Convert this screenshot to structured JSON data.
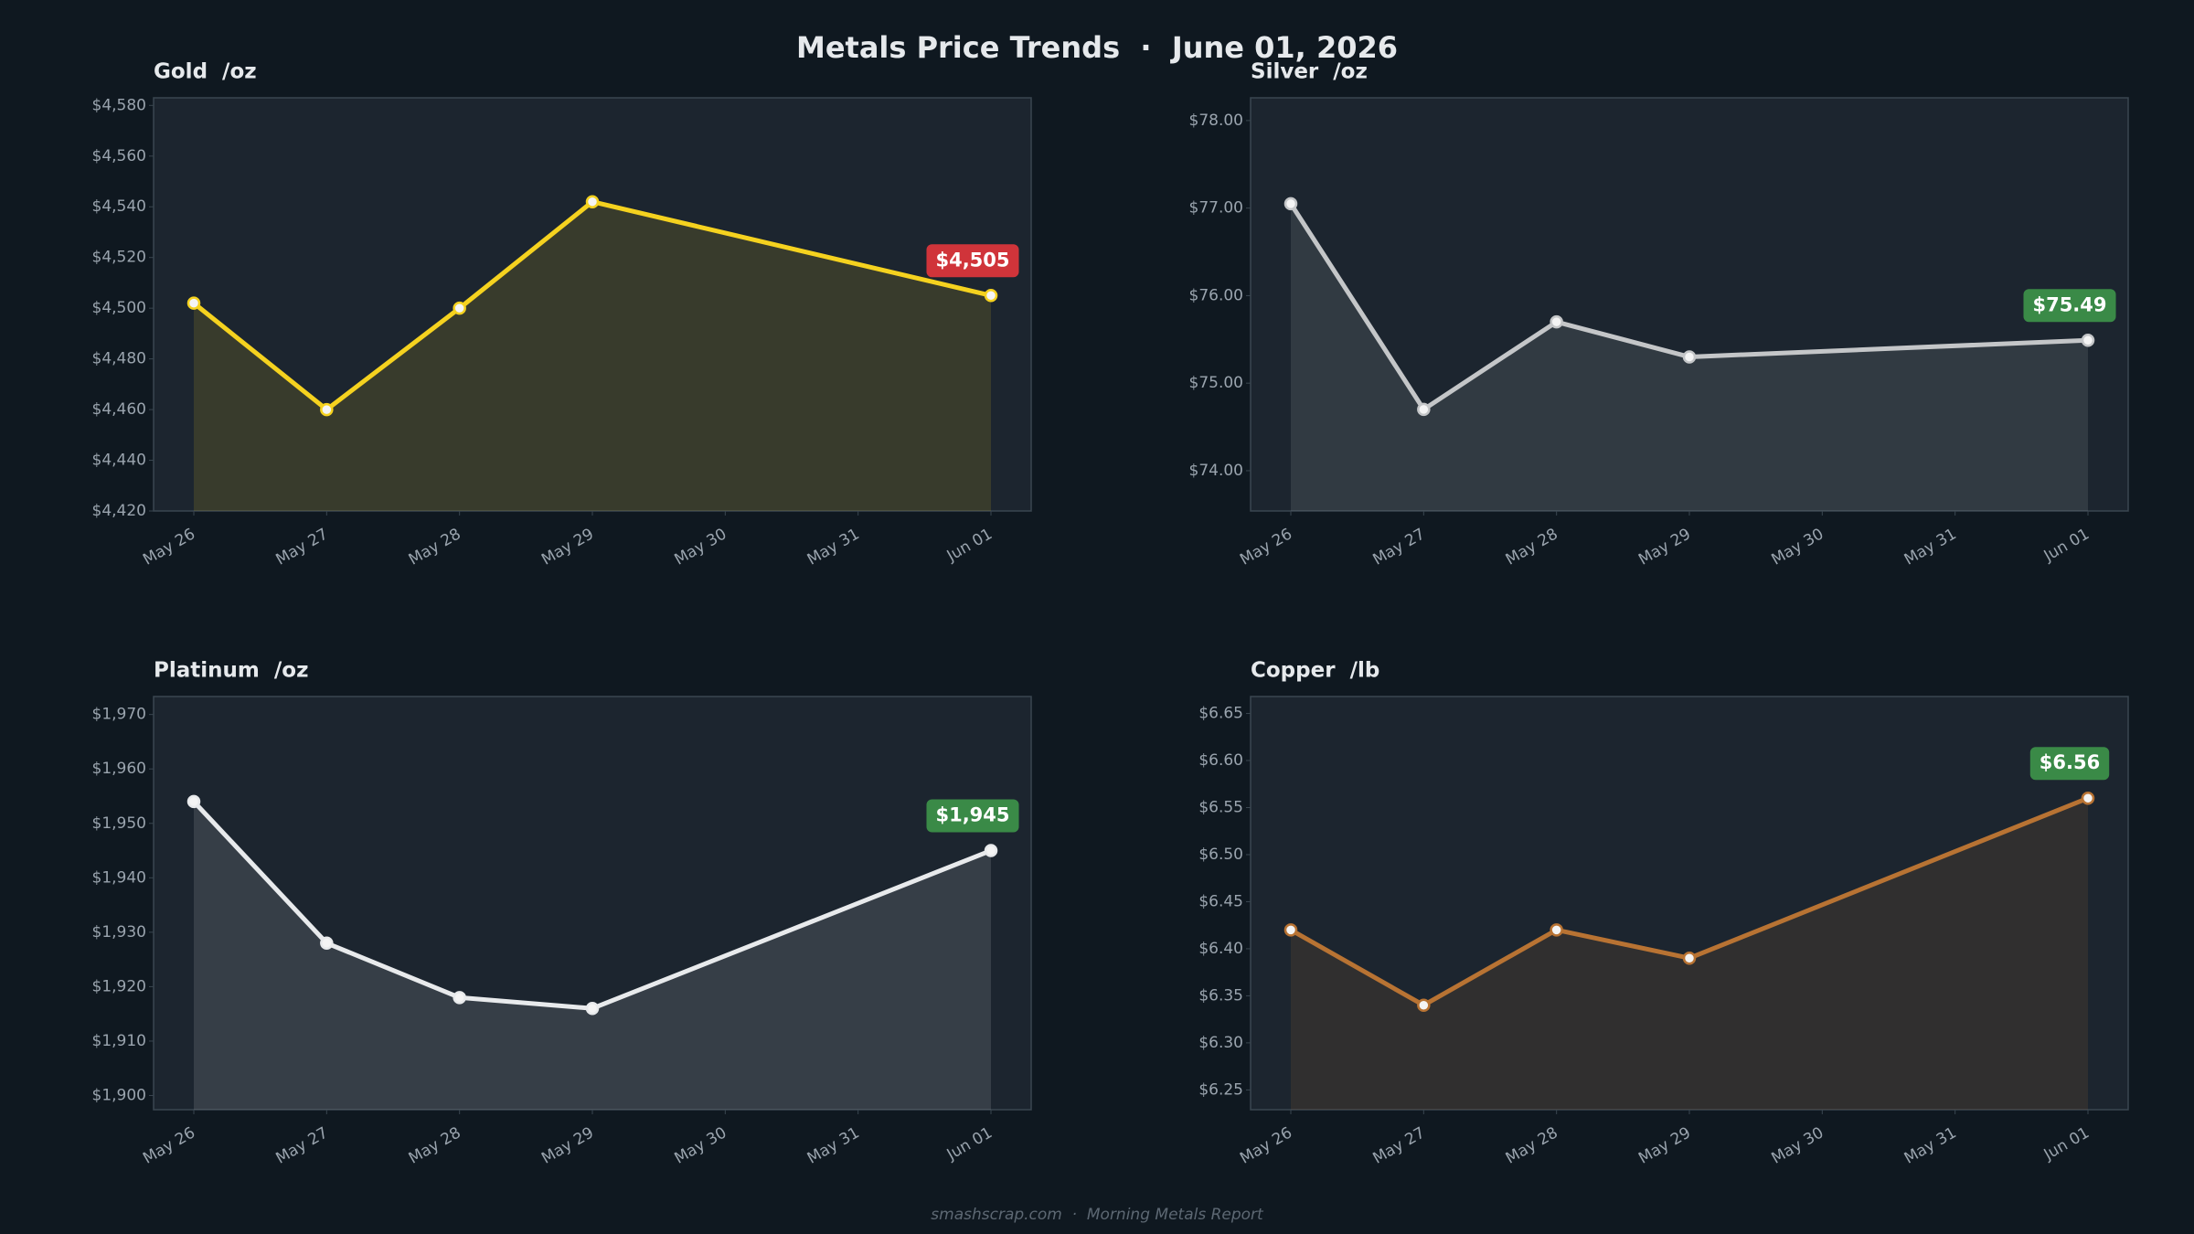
{
  "title": "Metals Price Trends  ·  June 01, 2026",
  "footer": "smashscrap.com  ·  Morning Metals Report",
  "chart_data": [
    {
      "type": "line",
      "title": "Gold  /oz",
      "color": "#f5d21f",
      "x": [
        "May 26",
        "May 27",
        "May 28",
        "May 29",
        "Jun 01"
      ],
      "xticks": [
        "May 26",
        "May 27",
        "May 28",
        "May 29",
        "May 30",
        "May 31",
        "Jun 01"
      ],
      "values": [
        4502,
        4460,
        4500,
        4542,
        4505
      ],
      "value_labels": [
        null,
        null,
        null,
        null,
        "$4,505"
      ],
      "badge_color": "#d0343a",
      "ylim": [
        4420,
        4583
      ],
      "yticks": [
        {
          "value": 4420,
          "label": "$4,420"
        },
        {
          "value": 4440,
          "label": "$4,440"
        },
        {
          "value": 4460,
          "label": "$4,460"
        },
        {
          "value": 4480,
          "label": "$4,480"
        },
        {
          "value": 4500,
          "label": "$4,500"
        },
        {
          "value": 4520,
          "label": "$4,520"
        },
        {
          "value": 4540,
          "label": "$4,540"
        },
        {
          "value": 4560,
          "label": "$4,560"
        },
        {
          "value": 4580,
          "label": "$4,580"
        }
      ]
    },
    {
      "type": "line",
      "title": "Silver  /oz",
      "color": "#c4c6c8",
      "x": [
        "May 26",
        "May 27",
        "May 28",
        "May 29",
        "Jun 01"
      ],
      "xticks": [
        "May 26",
        "May 27",
        "May 28",
        "May 29",
        "May 30",
        "May 31",
        "Jun 01"
      ],
      "values": [
        77.05,
        74.7,
        75.7,
        75.3,
        75.49
      ],
      "value_labels": [
        null,
        null,
        null,
        null,
        "$75.49"
      ],
      "badge_color": "#3a8a47",
      "ylim": [
        73.54,
        78.26
      ],
      "yticks": [
        {
          "value": 74,
          "label": "$74.00"
        },
        {
          "value": 75,
          "label": "$75.00"
        },
        {
          "value": 76,
          "label": "$76.00"
        },
        {
          "value": 77,
          "label": "$77.00"
        },
        {
          "value": 78,
          "label": "$78.00"
        }
      ]
    },
    {
      "type": "line",
      "title": "Platinum  /oz",
      "color": "#e8eaec",
      "x": [
        "May 26",
        "May 27",
        "May 28",
        "May 29",
        "Jun 01"
      ],
      "xticks": [
        "May 26",
        "May 27",
        "May 28",
        "May 29",
        "May 30",
        "May 31",
        "Jun 01"
      ],
      "values": [
        1954,
        1928,
        1918,
        1916,
        1945
      ],
      "value_labels": [
        null,
        null,
        null,
        null,
        "$1,945"
      ],
      "badge_color": "#3a8a47",
      "ylim": [
        1897.4,
        1973.3
      ],
      "yticks": [
        {
          "value": 1900,
          "label": "$1,900"
        },
        {
          "value": 1910,
          "label": "$1,910"
        },
        {
          "value": 1920,
          "label": "$1,920"
        },
        {
          "value": 1930,
          "label": "$1,930"
        },
        {
          "value": 1940,
          "label": "$1,940"
        },
        {
          "value": 1950,
          "label": "$1,950"
        },
        {
          "value": 1960,
          "label": "$1,960"
        },
        {
          "value": 1970,
          "label": "$1,970"
        }
      ]
    },
    {
      "type": "line",
      "title": "Copper  /lb",
      "color": "#b87333",
      "x": [
        "May 26",
        "May 27",
        "May 28",
        "May 29",
        "Jun 01"
      ],
      "xticks": [
        "May 26",
        "May 27",
        "May 28",
        "May 29",
        "May 30",
        "May 31",
        "Jun 01"
      ],
      "values": [
        6.42,
        6.34,
        6.42,
        6.39,
        6.56
      ],
      "value_labels": [
        null,
        null,
        null,
        null,
        "$6.56"
      ],
      "badge_color": "#3a8a47",
      "ylim": [
        6.229,
        6.668
      ],
      "yticks": [
        {
          "value": 6.25,
          "label": "$6.25"
        },
        {
          "value": 6.3,
          "label": "$6.30"
        },
        {
          "value": 6.35,
          "label": "$6.35"
        },
        {
          "value": 6.4,
          "label": "$6.40"
        },
        {
          "value": 6.45,
          "label": "$6.45"
        },
        {
          "value": 6.5,
          "label": "$6.50"
        },
        {
          "value": 6.55,
          "label": "$6.55"
        },
        {
          "value": 6.6,
          "label": "$6.60"
        },
        {
          "value": 6.65,
          "label": "$6.65"
        }
      ]
    }
  ]
}
